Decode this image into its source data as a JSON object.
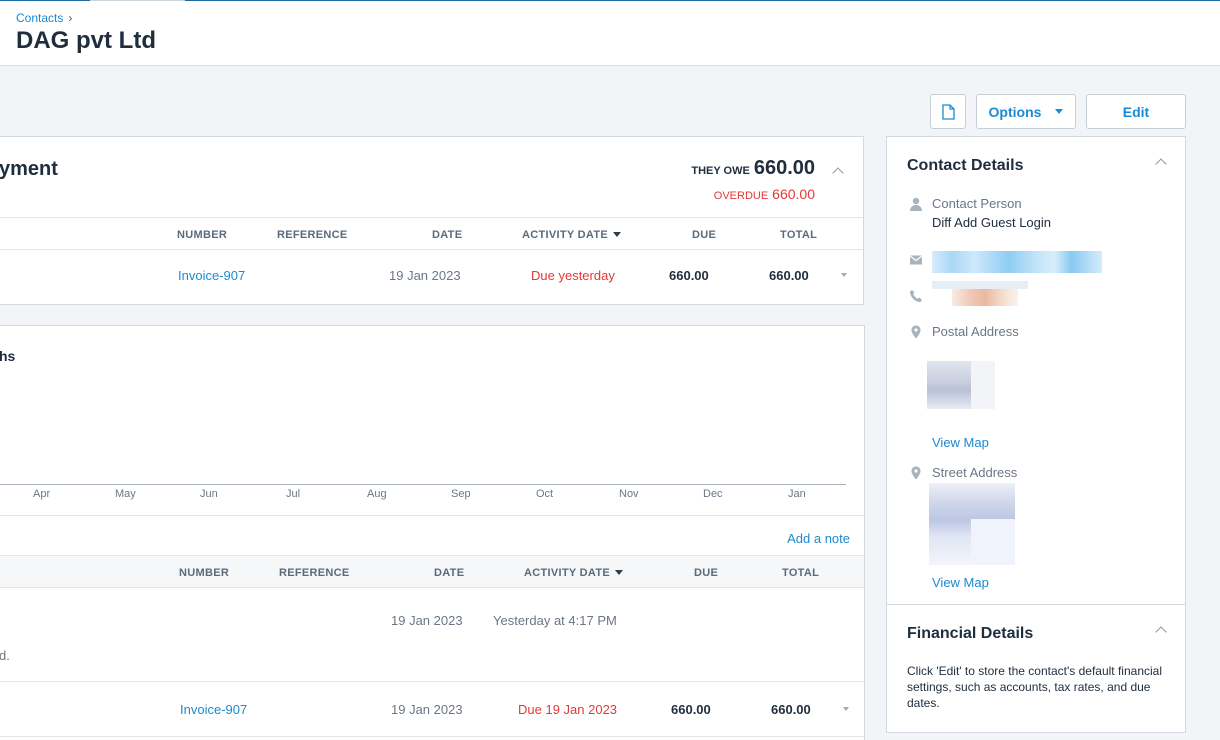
{
  "breadcrumb": {
    "parent": "Contacts",
    "separator": "›"
  },
  "page": {
    "title": "DAG pvt Ltd"
  },
  "toolbar": {
    "options_label": "Options",
    "edit_label": "Edit"
  },
  "awaiting": {
    "title": "yment",
    "they_owe_label": "THEY OWE",
    "they_owe_amount": "660.00",
    "overdue_label": "OVERDUE",
    "overdue_amount": "660.00",
    "columns": {
      "number": "NUMBER",
      "reference": "REFERENCE",
      "date": "DATE",
      "activity_date": "ACTIVITY DATE",
      "due": "DUE",
      "total": "TOTAL"
    },
    "rows": [
      {
        "number": "Invoice-907",
        "reference": "",
        "date": "19 Jan 2023",
        "activity": "Due yesterday",
        "due": "660.00",
        "total": "660.00"
      }
    ]
  },
  "graph": {
    "title": "hs",
    "months": [
      "Apr",
      "May",
      "Jun",
      "Jul",
      "Aug",
      "Sep",
      "Oct",
      "Nov",
      "Dec",
      "Jan"
    ]
  },
  "activity": {
    "add_note": "Add a note",
    "columns": {
      "number": "NUMBER",
      "reference": "REFERENCE",
      "date": "DATE",
      "activity_date": "ACTIVITY DATE",
      "due": "DUE",
      "total": "TOTAL"
    },
    "rows": [
      {
        "number": "",
        "date": "19 Jan 2023",
        "activity": "Yesterday at 4:17 PM",
        "note": "d."
      },
      {
        "number": "Invoice-907",
        "date": "19 Jan 2023",
        "activity": "Due 19 Jan 2023",
        "due": "660.00",
        "total": "660.00"
      }
    ]
  },
  "contact_details": {
    "title": "Contact Details",
    "contact_person_label": "Contact Person",
    "contact_person_value": "Diff Add Guest Login",
    "postal_address_label": "Postal Address",
    "street_address_label": "Street Address",
    "view_map": "View Map"
  },
  "financial_details": {
    "title": "Financial Details",
    "text": "Click 'Edit' to store the contact's default financial settings, such as accounts, tax rates, and due dates."
  },
  "colors": {
    "link": "#1b8ad3",
    "overdue": "#e53935",
    "heading": "#1f2d3d"
  }
}
